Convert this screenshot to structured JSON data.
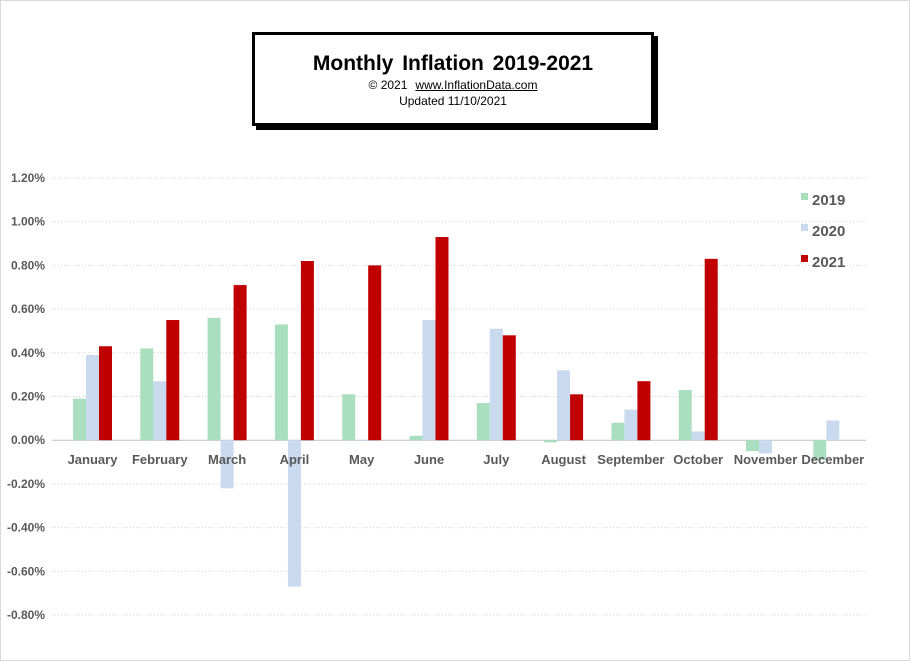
{
  "title": "Monthly Inflation 2019-2021",
  "copyright": "© 2021",
  "website": "www.InflationData.com",
  "updated": "Updated   11/10/2021",
  "chart_data": {
    "type": "bar",
    "title": "Monthly Inflation 2019-2021",
    "xlabel": "",
    "ylabel": "",
    "categories": [
      "January",
      "February",
      "March",
      "April",
      "May",
      "June",
      "July",
      "August",
      "September",
      "October",
      "November",
      "December"
    ],
    "series": [
      {
        "name": "2019",
        "color": "#a9dfbf",
        "values": [
          0.19,
          0.42,
          0.56,
          0.53,
          0.21,
          0.02,
          0.17,
          -0.01,
          0.08,
          0.23,
          -0.05,
          -0.09
        ]
      },
      {
        "name": "2020",
        "color": "#c9d9ee",
        "values": [
          0.39,
          0.27,
          -0.22,
          -0.67,
          0.0,
          0.55,
          0.51,
          0.32,
          0.14,
          0.04,
          -0.06,
          0.09
        ]
      },
      {
        "name": "2021",
        "color": "#c00000",
        "values": [
          0.43,
          0.55,
          0.71,
          0.82,
          0.8,
          0.93,
          0.48,
          0.21,
          0.27,
          0.83,
          null,
          null
        ]
      }
    ],
    "ylim": [
      -0.8,
      1.2
    ],
    "yticks": [
      "1.20%",
      "1.00%",
      "0.80%",
      "0.60%",
      "0.40%",
      "0.20%",
      "0.00%",
      "-0.20%",
      "-0.40%",
      "-0.60%",
      "-0.80%"
    ],
    "ytick_values": [
      1.2,
      1.0,
      0.8,
      0.6,
      0.4,
      0.2,
      0.0,
      -0.2,
      -0.4,
      -0.6,
      -0.8
    ],
    "grid": true,
    "legend": "top-right"
  }
}
